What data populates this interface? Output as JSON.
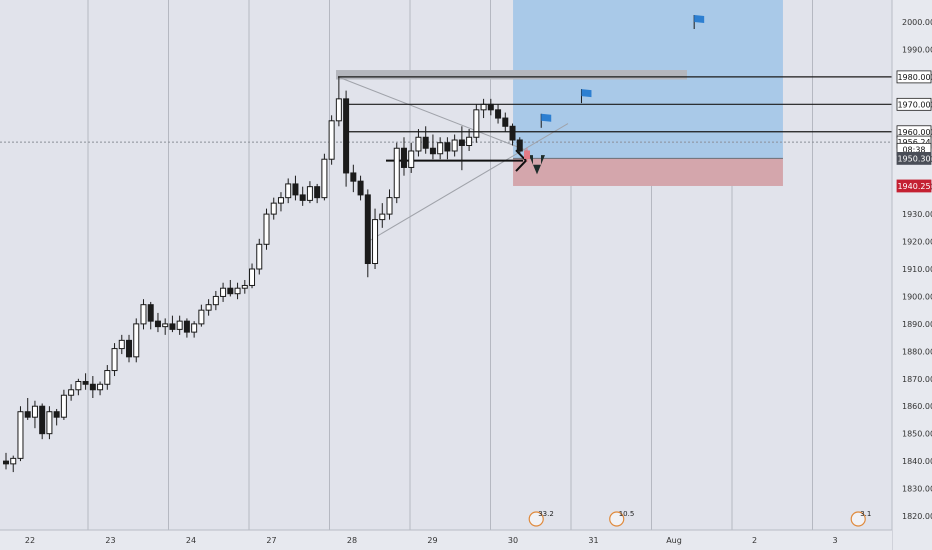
{
  "chart_data": {
    "type": "candlestick",
    "x_ticks": [
      "22",
      "23",
      "24",
      "27",
      "28",
      "29",
      "30",
      "31",
      "Aug",
      "2",
      "3"
    ],
    "y_ticks": [
      1820,
      1830,
      1840,
      1850,
      1860,
      1870,
      1880,
      1890,
      1900,
      1910,
      1920,
      1930,
      1940,
      1950,
      1960,
      1970,
      1980,
      1990,
      2000
    ],
    "ylim": [
      1816,
      2008
    ],
    "horizontal_levels": [
      1980,
      1970,
      1960
    ],
    "price_labels": [
      {
        "name": "level-1980",
        "value": 1980,
        "text": "1980.00",
        "style": "light"
      },
      {
        "name": "level-1970",
        "value": 1970,
        "text": "1970.00",
        "style": "light"
      },
      {
        "name": "level-1960",
        "value": 1960,
        "text": "1960.00",
        "style": "light"
      },
      {
        "name": "crosshair-price",
        "value": 1956.24,
        "text": "1956.24",
        "style": "light"
      },
      {
        "name": "countdown",
        "value": 1953.6,
        "text": "08:38",
        "style": "light"
      },
      {
        "name": "last-price",
        "value": 1950.3,
        "text": "1950.30",
        "style": "dark"
      },
      {
        "name": "stop-loss",
        "value": 1940.25,
        "text": "1940.25",
        "style": "red"
      }
    ],
    "position": {
      "entry": 1950.3,
      "take_profit": 2008,
      "stop_loss": 1940.25,
      "x_start": 6.1,
      "x_end": 9.9
    },
    "events": [
      {
        "name": "event-1",
        "x": 6.45,
        "text": "33.2"
      },
      {
        "name": "event-2",
        "x": 7.45,
        "text": "10.5"
      },
      {
        "name": "event-3",
        "x": 10.45,
        "text": "3.1"
      }
    ],
    "flags": [
      {
        "x": 6.45,
        "y": 1964
      },
      {
        "x": 6.95,
        "y": 1973
      },
      {
        "x": 8.35,
        "y": 2000
      }
    ],
    "series": [
      {
        "o": 1840,
        "h": 1843,
        "l": 1837,
        "c": 1839
      },
      {
        "o": 1839,
        "h": 1842,
        "l": 1836,
        "c": 1841
      },
      {
        "o": 1841,
        "h": 1860,
        "l": 1840,
        "c": 1858
      },
      {
        "o": 1858,
        "h": 1863,
        "l": 1855,
        "c": 1856
      },
      {
        "o": 1856,
        "h": 1862,
        "l": 1852,
        "c": 1860
      },
      {
        "o": 1860,
        "h": 1861,
        "l": 1848,
        "c": 1850
      },
      {
        "o": 1850,
        "h": 1860,
        "l": 1848,
        "c": 1858
      },
      {
        "o": 1858,
        "h": 1859,
        "l": 1853,
        "c": 1856
      },
      {
        "o": 1856,
        "h": 1866,
        "l": 1855,
        "c": 1864
      },
      {
        "o": 1864,
        "h": 1868,
        "l": 1862,
        "c": 1866
      },
      {
        "o": 1866,
        "h": 1870,
        "l": 1864,
        "c": 1869
      },
      {
        "o": 1869,
        "h": 1872,
        "l": 1866,
        "c": 1868
      },
      {
        "o": 1868,
        "h": 1871,
        "l": 1863,
        "c": 1866
      },
      {
        "o": 1866,
        "h": 1869,
        "l": 1864,
        "c": 1868
      },
      {
        "o": 1868,
        "h": 1875,
        "l": 1866,
        "c": 1873
      },
      {
        "o": 1873,
        "h": 1883,
        "l": 1871,
        "c": 1881
      },
      {
        "o": 1881,
        "h": 1886,
        "l": 1879,
        "c": 1884
      },
      {
        "o": 1884,
        "h": 1886,
        "l": 1876,
        "c": 1878
      },
      {
        "o": 1878,
        "h": 1892,
        "l": 1876,
        "c": 1890
      },
      {
        "o": 1890,
        "h": 1899,
        "l": 1888,
        "c": 1897
      },
      {
        "o": 1897,
        "h": 1898,
        "l": 1888,
        "c": 1891
      },
      {
        "o": 1891,
        "h": 1894,
        "l": 1887,
        "c": 1889
      },
      {
        "o": 1889,
        "h": 1892,
        "l": 1886,
        "c": 1890
      },
      {
        "o": 1890,
        "h": 1893,
        "l": 1887,
        "c": 1888
      },
      {
        "o": 1888,
        "h": 1893,
        "l": 1886,
        "c": 1891
      },
      {
        "o": 1891,
        "h": 1892,
        "l": 1885,
        "c": 1887
      },
      {
        "o": 1887,
        "h": 1891,
        "l": 1885,
        "c": 1890
      },
      {
        "o": 1890,
        "h": 1897,
        "l": 1889,
        "c": 1895
      },
      {
        "o": 1895,
        "h": 1899,
        "l": 1893,
        "c": 1897
      },
      {
        "o": 1897,
        "h": 1902,
        "l": 1895,
        "c": 1900
      },
      {
        "o": 1900,
        "h": 1905,
        "l": 1898,
        "c": 1903
      },
      {
        "o": 1903,
        "h": 1906,
        "l": 1900,
        "c": 1901
      },
      {
        "o": 1901,
        "h": 1905,
        "l": 1899,
        "c": 1903
      },
      {
        "o": 1903,
        "h": 1906,
        "l": 1901,
        "c": 1904
      },
      {
        "o": 1904,
        "h": 1912,
        "l": 1903,
        "c": 1910
      },
      {
        "o": 1910,
        "h": 1921,
        "l": 1908,
        "c": 1919
      },
      {
        "o": 1919,
        "h": 1932,
        "l": 1917,
        "c": 1930
      },
      {
        "o": 1930,
        "h": 1936,
        "l": 1928,
        "c": 1934
      },
      {
        "o": 1934,
        "h": 1938,
        "l": 1931,
        "c": 1936
      },
      {
        "o": 1936,
        "h": 1943,
        "l": 1934,
        "c": 1941
      },
      {
        "o": 1941,
        "h": 1944,
        "l": 1935,
        "c": 1937
      },
      {
        "o": 1937,
        "h": 1940,
        "l": 1933,
        "c": 1935
      },
      {
        "o": 1935,
        "h": 1942,
        "l": 1934,
        "c": 1940
      },
      {
        "o": 1940,
        "h": 1941,
        "l": 1934,
        "c": 1936
      },
      {
        "o": 1936,
        "h": 1952,
        "l": 1935,
        "c": 1950
      },
      {
        "o": 1950,
        "h": 1966,
        "l": 1948,
        "c": 1964
      },
      {
        "o": 1964,
        "h": 1980,
        "l": 1962,
        "c": 1972
      },
      {
        "o": 1972,
        "h": 1975,
        "l": 1940,
        "c": 1945
      },
      {
        "o": 1945,
        "h": 1948,
        "l": 1938,
        "c": 1942
      },
      {
        "o": 1942,
        "h": 1944,
        "l": 1935,
        "c": 1937
      },
      {
        "o": 1937,
        "h": 1939,
        "l": 1907,
        "c": 1912
      },
      {
        "o": 1912,
        "h": 1932,
        "l": 1910,
        "c": 1928
      },
      {
        "o": 1928,
        "h": 1934,
        "l": 1925,
        "c": 1930
      },
      {
        "o": 1930,
        "h": 1939,
        "l": 1928,
        "c": 1936
      },
      {
        "o": 1936,
        "h": 1956,
        "l": 1934,
        "c": 1954
      },
      {
        "o": 1954,
        "h": 1958,
        "l": 1944,
        "c": 1947
      },
      {
        "o": 1947,
        "h": 1956,
        "l": 1945,
        "c": 1953
      },
      {
        "o": 1953,
        "h": 1961,
        "l": 1951,
        "c": 1958
      },
      {
        "o": 1958,
        "h": 1962,
        "l": 1952,
        "c": 1954
      },
      {
        "o": 1954,
        "h": 1959,
        "l": 1950,
        "c": 1952
      },
      {
        "o": 1952,
        "h": 1958,
        "l": 1950,
        "c": 1956
      },
      {
        "o": 1956,
        "h": 1958,
        "l": 1950,
        "c": 1953
      },
      {
        "o": 1953,
        "h": 1959,
        "l": 1951,
        "c": 1957
      },
      {
        "o": 1957,
        "h": 1962,
        "l": 1946,
        "c": 1955
      },
      {
        "o": 1955,
        "h": 1961,
        "l": 1953,
        "c": 1958
      },
      {
        "o": 1958,
        "h": 1970,
        "l": 1956,
        "c": 1968
      },
      {
        "o": 1968,
        "h": 1972,
        "l": 1965,
        "c": 1970
      },
      {
        "o": 1970,
        "h": 1972,
        "l": 1966,
        "c": 1968
      },
      {
        "o": 1968,
        "h": 1970,
        "l": 1963,
        "c": 1965
      },
      {
        "o": 1965,
        "h": 1967,
        "l": 1960,
        "c": 1962
      },
      {
        "o": 1962,
        "h": 1963,
        "l": 1955,
        "c": 1957
      },
      {
        "o": 1957,
        "h": 1958,
        "l": 1952,
        "c": 1953
      },
      {
        "o": 1953,
        "h": 1954,
        "l": 1949,
        "c": 1950.3
      }
    ]
  }
}
